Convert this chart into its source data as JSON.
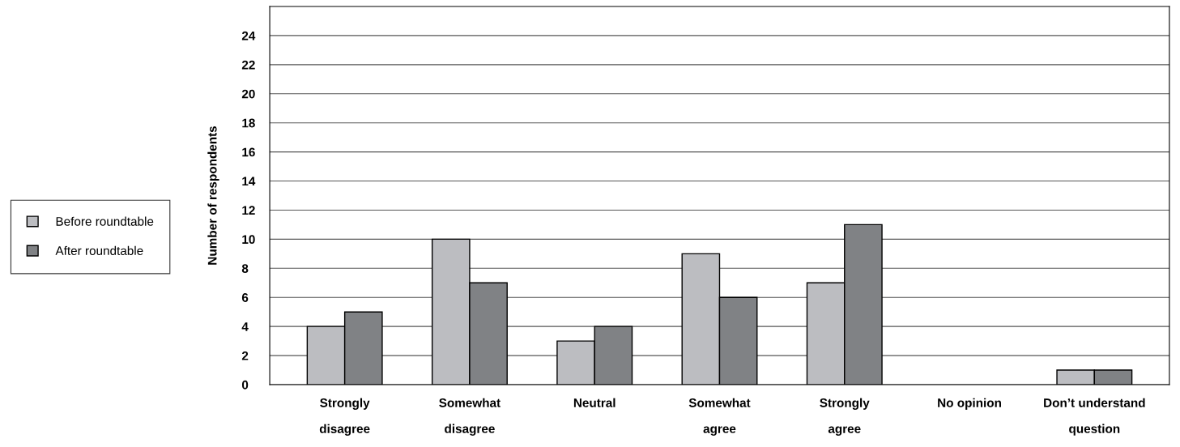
{
  "chart_data": {
    "type": "bar",
    "ylabel": "Number of respondents",
    "categories": [
      "Strongly\ndisagree",
      "Somewhat\ndisagree",
      "Neutral",
      "Somewhat\nagree",
      "Strongly\nagree",
      "No opinion",
      "Don’t understand\nquestion"
    ],
    "series": [
      {
        "name": "Before roundtable",
        "color": "#bcbdc1",
        "values": [
          4,
          10,
          3,
          9,
          7,
          0,
          1
        ]
      },
      {
        "name": "After roundtable",
        "color": "#808285",
        "values": [
          5,
          7,
          4,
          6,
          11,
          0,
          1
        ]
      }
    ],
    "ylim": [
      0,
      26
    ],
    "yticks": [
      0,
      2,
      4,
      6,
      8,
      10,
      12,
      14,
      16,
      18,
      20,
      22,
      24
    ],
    "grid": "y",
    "legend": "left"
  }
}
